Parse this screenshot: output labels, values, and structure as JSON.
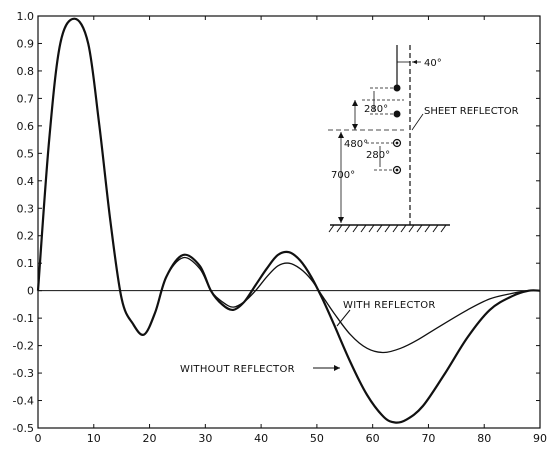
{
  "chart_data": {
    "type": "line",
    "xlim": [
      0,
      90
    ],
    "ylim": [
      -0.5,
      1.0
    ],
    "x_ticks": [
      "0",
      "10",
      "20",
      "30",
      "40",
      "50",
      "60",
      "70",
      "80",
      "90"
    ],
    "y_ticks": [
      "1.0",
      "0.9",
      "0.8",
      "0.7",
      "0.6",
      "0.5",
      "0.4",
      "0.3",
      "0.2",
      "0.1",
      "0",
      "-0.1",
      "-0.2",
      "-0.3",
      "-0.4",
      "-0.5"
    ],
    "grid": false,
    "series": [
      {
        "name": "WITH REFLECTOR",
        "x": [
          0,
          2,
          4,
          6.5,
          9,
          11,
          13,
          15,
          17,
          19,
          21,
          23,
          26,
          29,
          31,
          33,
          35,
          37,
          39,
          41,
          43,
          45,
          47,
          49,
          51,
          53,
          56,
          59,
          62,
          65,
          68,
          72,
          77,
          81,
          85,
          88,
          90
        ],
        "y": [
          0,
          0.55,
          0.9,
          0.99,
          0.9,
          0.6,
          0.25,
          -0.03,
          -0.12,
          -0.16,
          -0.08,
          0.05,
          0.12,
          0.08,
          0.0,
          -0.04,
          -0.06,
          -0.04,
          0.0,
          0.05,
          0.09,
          0.1,
          0.08,
          0.04,
          -0.02,
          -0.08,
          -0.16,
          -0.21,
          -0.225,
          -0.21,
          -0.18,
          -0.13,
          -0.07,
          -0.03,
          -0.01,
          0.0,
          0.0
        ]
      },
      {
        "name": "WITHOUT REFLECTOR",
        "x": [
          0,
          2,
          4,
          6.5,
          9,
          11,
          13,
          15,
          17,
          19,
          21,
          23,
          26,
          29,
          31,
          33,
          35,
          37,
          39,
          41,
          43,
          45,
          47,
          49,
          51,
          53,
          56,
          59,
          62,
          64,
          66,
          69,
          73,
          77,
          81,
          85,
          88,
          90
        ],
        "y": [
          0,
          0.55,
          0.9,
          0.99,
          0.9,
          0.6,
          0.25,
          -0.03,
          -0.12,
          -0.16,
          -0.08,
          0.05,
          0.13,
          0.09,
          0.0,
          -0.05,
          -0.07,
          -0.04,
          0.02,
          0.08,
          0.13,
          0.14,
          0.11,
          0.05,
          -0.03,
          -0.12,
          -0.26,
          -0.38,
          -0.46,
          -0.48,
          -0.47,
          -0.42,
          -0.3,
          -0.17,
          -0.07,
          -0.02,
          0.0,
          0.0
        ]
      }
    ],
    "annotations": {
      "with_reflector": "WITH REFLECTOR",
      "without_reflector": "WITHOUT REFLECTOR"
    },
    "inset": {
      "angle_top": "40°",
      "spacing_upper": "280°",
      "spacing_middle": "480°",
      "spacing_lower": "280°",
      "height": "700°",
      "sheet_label": "SHEET REFLECTOR"
    }
  }
}
